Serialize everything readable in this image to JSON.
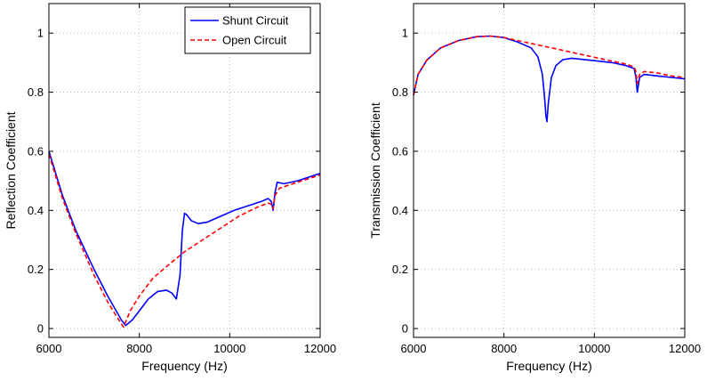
{
  "chart_data": [
    {
      "type": "line",
      "title": "",
      "xlabel": "Frequency (Hz)",
      "ylabel": "Reflection Coefficient",
      "xlim": [
        6000,
        12000
      ],
      "ylim": [
        -0.03,
        1.1
      ],
      "xticks": [
        6000,
        8000,
        10000,
        12000
      ],
      "yticks": [
        0,
        0.2,
        0.4,
        0.6,
        0.8,
        1
      ],
      "xtick_labels": [
        "6000",
        "8000",
        "10000",
        "12000"
      ],
      "ytick_labels": [
        "0",
        "0.2",
        "0.4",
        "0.6",
        "0.8",
        "1"
      ],
      "grid": true,
      "legend": {
        "position": "top-right",
        "entries": [
          "Shunt Circuit",
          "Open Circuit"
        ]
      },
      "series": [
        {
          "name": "Shunt Circuit",
          "color": "#0000ff",
          "style": "solid",
          "x": [
            6000,
            6300,
            6600,
            7000,
            7300,
            7600,
            7700,
            7850,
            8000,
            8200,
            8400,
            8600,
            8720,
            8820,
            8900,
            8950,
            9000,
            9050,
            9150,
            9300,
            9500,
            9800,
            10100,
            10400,
            10700,
            10850,
            10920,
            10960,
            11000,
            11050,
            11200,
            11500,
            11800,
            12000
          ],
          "y": [
            0.6,
            0.45,
            0.33,
            0.2,
            0.11,
            0.03,
            0.01,
            0.03,
            0.06,
            0.1,
            0.125,
            0.13,
            0.12,
            0.1,
            0.18,
            0.33,
            0.39,
            0.385,
            0.365,
            0.355,
            0.36,
            0.38,
            0.4,
            0.415,
            0.43,
            0.44,
            0.43,
            0.4,
            0.46,
            0.495,
            0.49,
            0.5,
            0.515,
            0.525
          ]
        },
        {
          "name": "Open Circuit",
          "color": "#ff0000",
          "style": "dashed",
          "x": [
            6000,
            6300,
            6600,
            7000,
            7300,
            7500,
            7650,
            7800,
            8000,
            8300,
            8600,
            9000,
            9400,
            9800,
            10200,
            10600,
            10850,
            10920,
            10960,
            11000,
            11100,
            11400,
            11700,
            12000
          ],
          "y": [
            0.59,
            0.44,
            0.32,
            0.18,
            0.09,
            0.04,
            0.005,
            0.06,
            0.11,
            0.17,
            0.21,
            0.26,
            0.3,
            0.34,
            0.38,
            0.41,
            0.425,
            0.42,
            0.405,
            0.45,
            0.475,
            0.49,
            0.505,
            0.52
          ]
        }
      ]
    },
    {
      "type": "line",
      "title": "",
      "xlabel": "Frequency (Hz)",
      "ylabel": "Transmission Coefficient",
      "xlim": [
        6000,
        12000
      ],
      "ylim": [
        -0.03,
        1.1
      ],
      "xticks": [
        6000,
        8000,
        10000,
        12000
      ],
      "yticks": [
        0,
        0.2,
        0.4,
        0.6,
        0.8,
        1
      ],
      "xtick_labels": [
        "6000",
        "8000",
        "10000",
        "12000"
      ],
      "ytick_labels": [
        "0",
        "0.2",
        "0.4",
        "0.6",
        "0.8",
        "1"
      ],
      "grid": true,
      "series": [
        {
          "color": "#0000ff",
          "style": "solid",
          "x": [
            6000,
            6100,
            6300,
            6600,
            7000,
            7400,
            7700,
            8000,
            8300,
            8600,
            8750,
            8850,
            8900,
            8930,
            8950,
            8980,
            9050,
            9150,
            9300,
            9500,
            9800,
            10100,
            10400,
            10700,
            10880,
            10920,
            10950,
            11000,
            11100,
            11400,
            11700,
            12000
          ],
          "y": [
            0.79,
            0.86,
            0.91,
            0.95,
            0.975,
            0.988,
            0.99,
            0.985,
            0.97,
            0.95,
            0.92,
            0.86,
            0.78,
            0.72,
            0.7,
            0.76,
            0.85,
            0.89,
            0.91,
            0.915,
            0.91,
            0.905,
            0.9,
            0.89,
            0.88,
            0.85,
            0.8,
            0.85,
            0.86,
            0.855,
            0.85,
            0.845
          ]
        },
        {
          "color": "#ff0000",
          "style": "dashed",
          "x": [
            6000,
            6100,
            6300,
            6600,
            7000,
            7400,
            7700,
            8000,
            8300,
            8600,
            8900,
            9200,
            9500,
            9800,
            10100,
            10400,
            10700,
            10880,
            10920,
            10950,
            11000,
            11100,
            11400,
            11700,
            12000
          ],
          "y": [
            0.79,
            0.86,
            0.91,
            0.95,
            0.975,
            0.988,
            0.99,
            0.985,
            0.975,
            0.965,
            0.955,
            0.945,
            0.935,
            0.925,
            0.915,
            0.905,
            0.895,
            0.885,
            0.87,
            0.83,
            0.86,
            0.87,
            0.865,
            0.855,
            0.85
          ]
        }
      ]
    }
  ]
}
